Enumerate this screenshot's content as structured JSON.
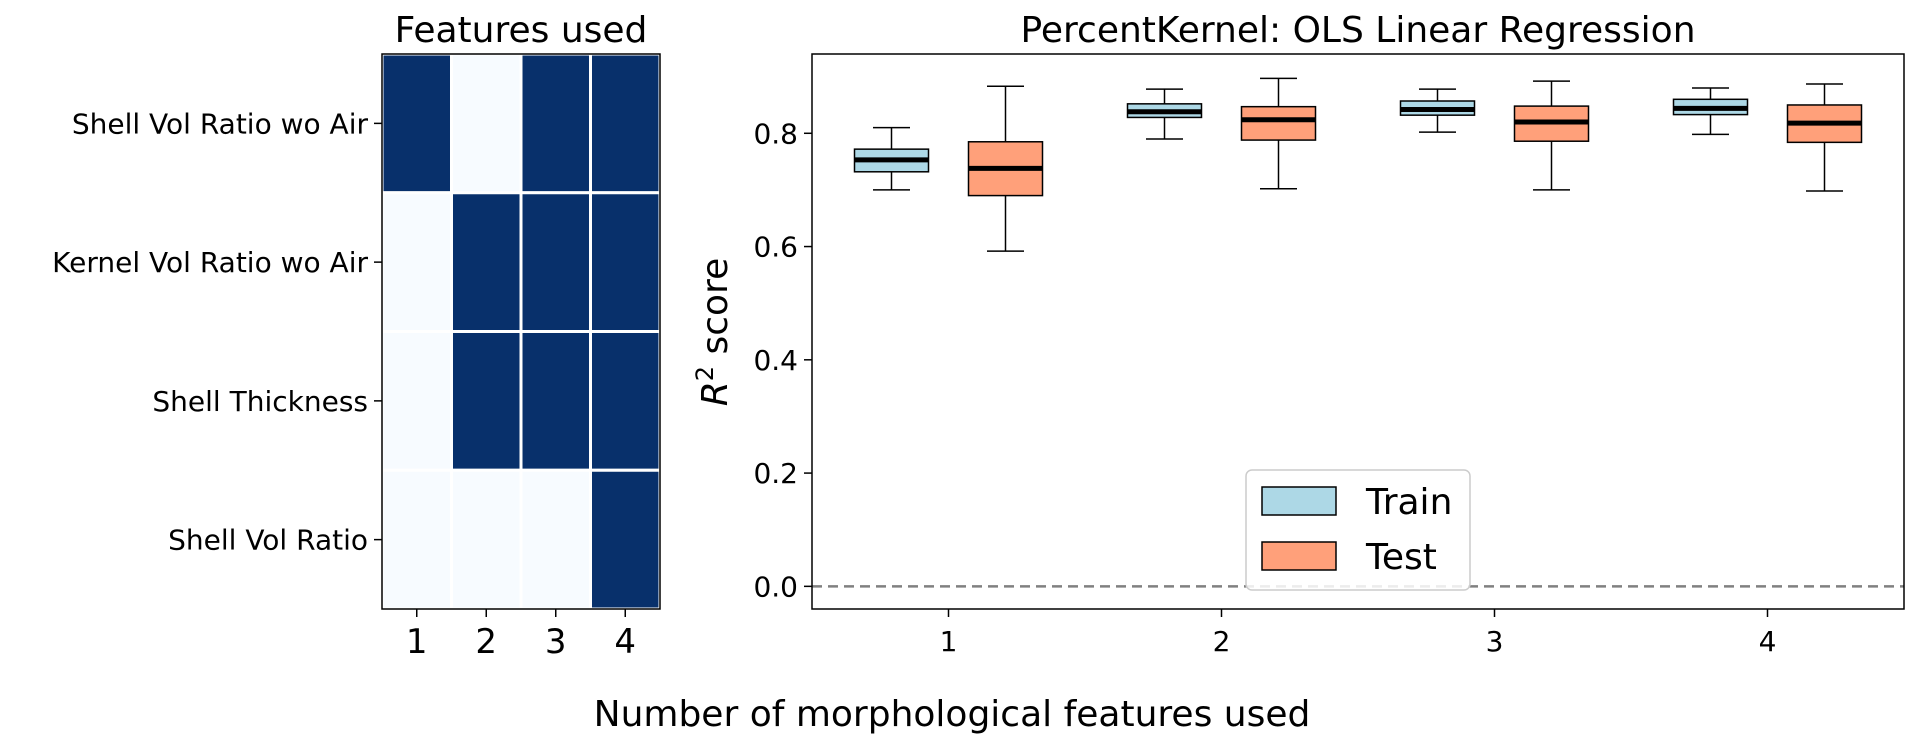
{
  "colors": {
    "train": "#add8e6",
    "test": "#ffa07a",
    "on": "#08306b",
    "off": "#f7fbff",
    "median": "#000000",
    "zero_line": "#808080"
  },
  "shared_xlabel": "Number of morphological features used",
  "chart_data": [
    {
      "type": "heatmap",
      "title": "Features used",
      "rows": [
        "Shell Vol Ratio wo Air",
        "Kernel Vol Ratio wo Air",
        "Shell Thickness",
        "Shell Vol Ratio"
      ],
      "cols": [
        "1",
        "2",
        "3",
        "4"
      ],
      "matrix": [
        [
          1,
          0,
          1,
          1
        ],
        [
          0,
          1,
          1,
          1
        ],
        [
          0,
          1,
          1,
          1
        ],
        [
          0,
          0,
          0,
          1
        ]
      ]
    },
    {
      "type": "boxplot",
      "title": "PercentKernel: OLS Linear Regression",
      "ylabel_base": "R",
      "ylabel_sup": "2",
      "ylabel_rest": " score",
      "categories": [
        "1",
        "2",
        "3",
        "4"
      ],
      "ylim": [
        -0.04,
        0.94
      ],
      "yticks": [
        "0.0",
        "0.2",
        "0.4",
        "0.6",
        "0.8"
      ],
      "reference_line": 0.0,
      "legend_position": "lower-center",
      "series": [
        {
          "name": "Train",
          "boxes": [
            {
              "min": 0.7,
              "q1": 0.732,
              "median": 0.753,
              "q3": 0.772,
              "max": 0.81
            },
            {
              "min": 0.79,
              "q1": 0.828,
              "median": 0.838,
              "q3": 0.852,
              "max": 0.878
            },
            {
              "min": 0.802,
              "q1": 0.832,
              "median": 0.842,
              "q3": 0.857,
              "max": 0.878
            },
            {
              "min": 0.798,
              "q1": 0.833,
              "median": 0.844,
              "q3": 0.86,
              "max": 0.88
            }
          ]
        },
        {
          "name": "Test",
          "boxes": [
            {
              "min": 0.592,
              "q1": 0.69,
              "median": 0.738,
              "q3": 0.785,
              "max": 0.883
            },
            {
              "min": 0.702,
              "q1": 0.788,
              "median": 0.824,
              "q3": 0.847,
              "max": 0.897
            },
            {
              "min": 0.7,
              "q1": 0.786,
              "median": 0.82,
              "q3": 0.848,
              "max": 0.892
            },
            {
              "min": 0.698,
              "q1": 0.784,
              "median": 0.818,
              "q3": 0.85,
              "max": 0.887
            }
          ]
        }
      ]
    }
  ]
}
